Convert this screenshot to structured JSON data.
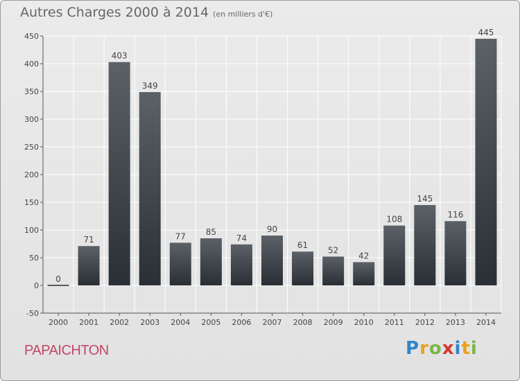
{
  "header": {
    "title": "Autres Charges 2000 à 2014",
    "subtitle": "(en milliers d'€)"
  },
  "footer": {
    "commune": "PAPAICHTON",
    "logo_letters": [
      "P",
      "r",
      "o",
      "x",
      "i",
      "t",
      "i"
    ],
    "logo_colors": [
      "#2e86c8",
      "#e8a31c",
      "#7ab648",
      "#d9342b",
      "#2e86c8",
      "#e8a31c",
      "#7ab648"
    ]
  },
  "colors": {
    "bar_top": "#5c6168",
    "bar_bottom": "#2a2f36",
    "grid": "#ffffff",
    "text": "#444444",
    "axis": "#555555"
  },
  "chart_data": {
    "type": "bar",
    "categories": [
      "2000",
      "2001",
      "2002",
      "2003",
      "2004",
      "2005",
      "2006",
      "2007",
      "2008",
      "2009",
      "2010",
      "2011",
      "2012",
      "2013",
      "2014"
    ],
    "values": [
      0,
      71,
      403,
      349,
      77,
      85,
      74,
      90,
      61,
      52,
      42,
      108,
      145,
      116,
      445
    ],
    "data_labels": [
      "0",
      "71",
      "403",
      "349",
      "77",
      "85",
      "74",
      "90",
      "61",
      "52",
      "42",
      "108",
      "145",
      "116",
      "445"
    ],
    "ylim": [
      -50,
      450
    ],
    "yticks": [
      -50,
      0,
      50,
      100,
      150,
      200,
      250,
      300,
      350,
      400,
      450
    ],
    "ytick_labels": [
      "-50",
      "0",
      "50",
      "100",
      "150",
      "200",
      "250",
      "300",
      "350",
      "400",
      "450"
    ],
    "grid": true
  }
}
